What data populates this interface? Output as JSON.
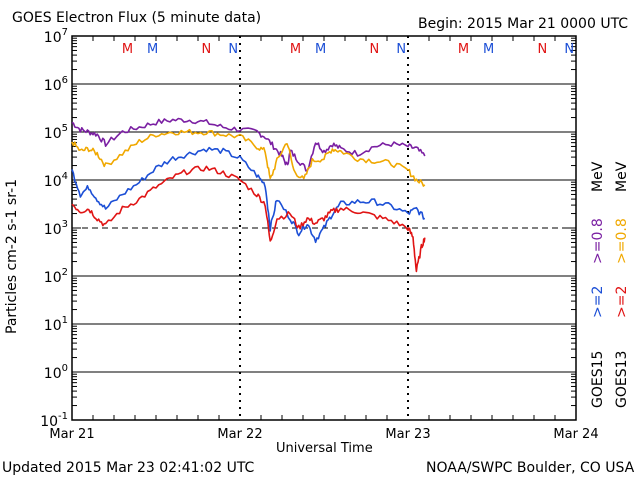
{
  "header": {
    "title": "GOES Electron Flux (5 minute data)",
    "begin": "Begin: 2015 Mar 21 0000 UTC"
  },
  "footer": {
    "updated": "Updated 2015 Mar 23 02:41:02 UTC",
    "credit": "NOAA/SWPC Boulder, CO USA"
  },
  "colors": {
    "purple": "#7a1fa2",
    "orange": "#f0a800",
    "blue": "#1c4fd6",
    "red": "#e01414",
    "marker_m_red": "#e01414",
    "marker_m_blue": "#1c4fd6"
  },
  "chart_data": {
    "type": "line",
    "title": "GOES Electron Flux (5 minute data)",
    "xlabel": "Universal Time",
    "ylabel": "Particles cm-2 s-1 sr-1",
    "ylim_log10": [
      -1,
      7
    ],
    "xlim_days": [
      0,
      3
    ],
    "x_tick_labels": [
      "Mar 21",
      "Mar 22",
      "Mar 23",
      "Mar 24"
    ],
    "y_tick_exponents": [
      "7",
      "6",
      "5",
      "4",
      "3",
      "2",
      "1",
      "0",
      "-1"
    ],
    "dashed_reference_exponent": 3,
    "markers": [
      {
        "label": "M",
        "day": 0.33,
        "color": "red"
      },
      {
        "label": "M",
        "day": 0.48,
        "color": "blue"
      },
      {
        "label": "N",
        "day": 0.8,
        "color": "red"
      },
      {
        "label": "N",
        "day": 0.96,
        "color": "blue"
      },
      {
        "label": "M",
        "day": 1.33,
        "color": "red"
      },
      {
        "label": "M",
        "day": 1.48,
        "color": "blue"
      },
      {
        "label": "N",
        "day": 1.8,
        "color": "red"
      },
      {
        "label": "N",
        "day": 1.96,
        "color": "blue"
      },
      {
        "label": "M",
        "day": 2.33,
        "color": "red"
      },
      {
        "label": "M",
        "day": 2.48,
        "color": "blue"
      },
      {
        "label": "N",
        "day": 2.8,
        "color": "red"
      },
      {
        "label": "N",
        "day": 2.96,
        "color": "blue"
      }
    ],
    "legend": {
      "goes15": "GOES15",
      "goes13": "GOES13",
      "ge2_15": ">=2",
      "ge08_15": ">=0.8",
      "ge2_13": ">=2",
      "ge08_13": ">=0.8",
      "mev": "MeV"
    },
    "series": [
      {
        "name": "GOES15 >=0.8 MeV",
        "color": "purple",
        "x": [
          0.0,
          0.05,
          0.1,
          0.15,
          0.2,
          0.3,
          0.4,
          0.5,
          0.6,
          0.7,
          0.8,
          0.9,
          1.0,
          1.1,
          1.15,
          1.2,
          1.25,
          1.28,
          1.3,
          1.35,
          1.4,
          1.45,
          1.5,
          1.55,
          1.6,
          1.7,
          1.8,
          1.9,
          2.0,
          2.05,
          2.1
        ],
        "log10": [
          5.2,
          5.05,
          5.0,
          4.95,
          4.75,
          5.0,
          5.1,
          5.2,
          5.25,
          5.25,
          5.2,
          5.1,
          5.05,
          5.0,
          4.9,
          4.7,
          4.5,
          4.3,
          4.6,
          4.4,
          4.2,
          4.8,
          4.6,
          4.75,
          4.65,
          4.55,
          4.7,
          4.75,
          4.7,
          4.65,
          4.5
        ]
      },
      {
        "name": "GOES13 >=0.8 MeV",
        "color": "orange",
        "x": [
          0.0,
          0.05,
          0.1,
          0.15,
          0.2,
          0.3,
          0.4,
          0.5,
          0.6,
          0.7,
          0.8,
          0.9,
          1.0,
          1.1,
          1.15,
          1.18,
          1.22,
          1.28,
          1.32,
          1.38,
          1.43,
          1.5,
          1.55,
          1.6,
          1.7,
          1.8,
          1.9,
          2.0,
          2.05,
          2.1
        ],
        "log10": [
          4.8,
          4.6,
          4.65,
          4.55,
          4.3,
          4.55,
          4.8,
          4.95,
          5.0,
          5.0,
          5.0,
          4.95,
          4.9,
          4.7,
          4.6,
          4.0,
          4.4,
          4.8,
          4.2,
          4.0,
          4.4,
          4.45,
          4.65,
          4.6,
          4.45,
          4.4,
          4.35,
          4.2,
          4.0,
          3.9
        ]
      },
      {
        "name": "GOES15 >=2 MeV",
        "color": "blue",
        "x": [
          0.0,
          0.05,
          0.1,
          0.15,
          0.2,
          0.3,
          0.4,
          0.5,
          0.6,
          0.7,
          0.8,
          0.9,
          1.0,
          1.1,
          1.15,
          1.18,
          1.22,
          1.3,
          1.35,
          1.4,
          1.45,
          1.5,
          1.55,
          1.6,
          1.7,
          1.8,
          1.9,
          2.0,
          2.05,
          2.1
        ],
        "log10": [
          4.2,
          3.7,
          3.85,
          3.6,
          3.4,
          3.7,
          3.95,
          4.25,
          4.45,
          4.55,
          4.65,
          4.6,
          4.45,
          4.1,
          3.9,
          3.0,
          3.6,
          3.2,
          2.9,
          3.1,
          2.75,
          3.0,
          3.3,
          3.5,
          3.55,
          3.55,
          3.45,
          3.3,
          3.4,
          3.2
        ]
      },
      {
        "name": "GOES13 >=2 MeV",
        "color": "red",
        "x": [
          0.0,
          0.05,
          0.1,
          0.15,
          0.2,
          0.3,
          0.4,
          0.5,
          0.6,
          0.7,
          0.8,
          0.9,
          1.0,
          1.1,
          1.15,
          1.18,
          1.22,
          1.3,
          1.35,
          1.4,
          1.45,
          1.5,
          1.55,
          1.6,
          1.7,
          1.8,
          1.9,
          2.0,
          2.03,
          2.05,
          2.08,
          2.1
        ],
        "log10": [
          3.5,
          3.35,
          3.4,
          3.2,
          3.05,
          3.4,
          3.6,
          3.85,
          4.05,
          4.2,
          4.25,
          4.15,
          4.0,
          3.7,
          3.5,
          2.7,
          3.2,
          3.3,
          3.0,
          3.2,
          3.1,
          3.2,
          3.35,
          3.4,
          3.35,
          3.25,
          3.15,
          3.0,
          2.8,
          2.1,
          2.6,
          2.8
        ]
      }
    ]
  }
}
